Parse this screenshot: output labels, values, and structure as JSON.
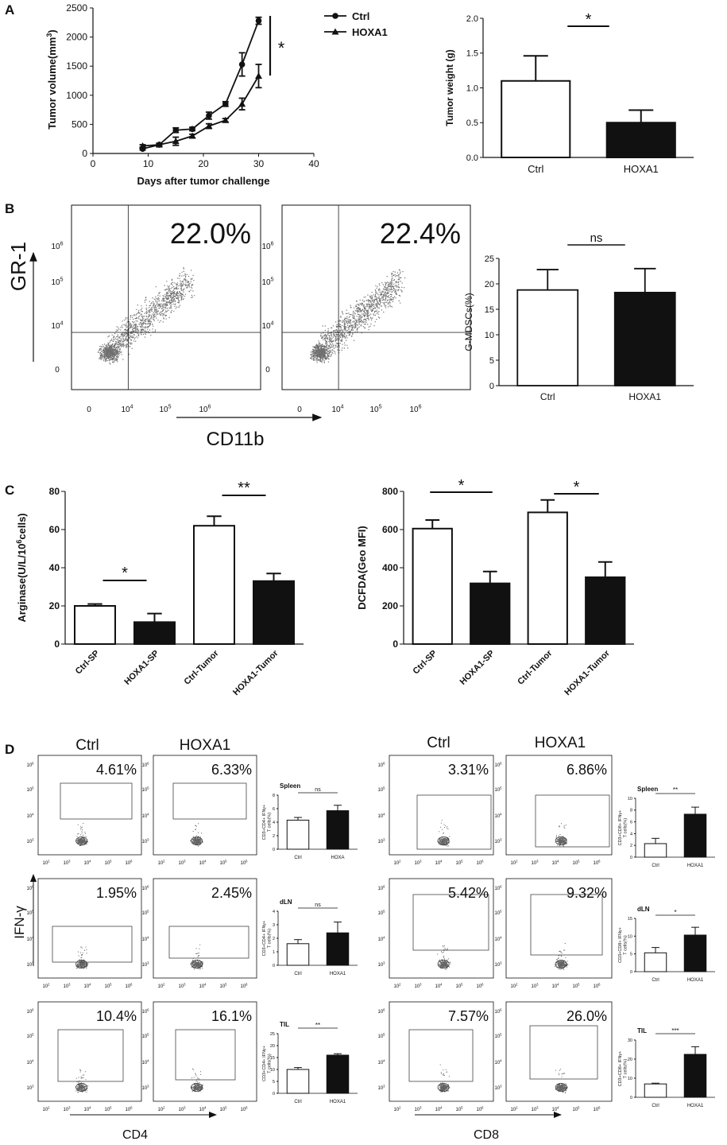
{
  "panels": {
    "A": "A",
    "B": "B",
    "C": "C",
    "D": "D"
  },
  "chart_data": [
    {
      "id": "A_growth",
      "type": "line",
      "xlabel": "Days after tumor challenge",
      "ylabel": "Tumor volume(mm3)",
      "xlim": [
        0,
        40
      ],
      "ylim": [
        0,
        2500
      ],
      "xticks": [
        0,
        10,
        20,
        30,
        40
      ],
      "yticks": [
        0,
        500,
        1000,
        1500,
        2000,
        2500
      ],
      "series": [
        {
          "name": "Ctrl",
          "marker": "circle",
          "x": [
            9,
            12,
            15,
            18,
            21,
            24,
            27,
            30
          ],
          "y": [
            80,
            150,
            400,
            420,
            650,
            850,
            1530,
            2280
          ],
          "err": [
            20,
            25,
            40,
            30,
            60,
            40,
            200,
            60
          ]
        },
        {
          "name": "HOXA1",
          "marker": "triangle",
          "x": [
            9,
            12,
            15,
            18,
            21,
            24,
            27,
            30
          ],
          "y": [
            130,
            150,
            210,
            300,
            470,
            570,
            850,
            1330
          ],
          "err": [
            20,
            20,
            70,
            30,
            40,
            30,
            100,
            200
          ]
        }
      ],
      "significance": "*"
    },
    {
      "id": "A_weight",
      "type": "bar",
      "ylabel": "Tumor weight (g)",
      "categories": [
        "Ctrl",
        "HOXA1"
      ],
      "values": [
        1.1,
        0.5
      ],
      "errors": [
        0.36,
        0.18
      ],
      "fills": [
        "#ffffff",
        "#111111"
      ],
      "ylim": [
        0,
        2.0
      ],
      "yticks": [
        "0.0",
        "0.5",
        "1.0",
        "1.5",
        "2.0"
      ],
      "significance": [
        "*"
      ]
    },
    {
      "id": "B_mdsc",
      "type": "bar",
      "ylabel": "G-MDSCs(%)",
      "categories": [
        "Ctrl",
        "HOXA1"
      ],
      "values": [
        18.8,
        18.3
      ],
      "errors": [
        4.0,
        4.7
      ],
      "fills": [
        "#ffffff",
        "#111111"
      ],
      "ylim": [
        0,
        25
      ],
      "yticks": [
        "0",
        "5",
        "10",
        "15",
        "20",
        "25"
      ],
      "significance": [
        "ns"
      ]
    },
    {
      "id": "C_arginase",
      "type": "bar",
      "ylabel": "Arginase(U/L/10^6cells)",
      "categories": [
        "Ctrl-SP",
        "HOXA1-SP",
        "Ctrl-Tumor",
        "HOXA1-Tumor"
      ],
      "values": [
        20,
        11.5,
        62,
        33
      ],
      "errors": [
        1,
        4.5,
        5,
        4
      ],
      "fills": [
        "#ffffff",
        "#111111",
        "#ffffff",
        "#111111"
      ],
      "ylim": [
        0,
        80
      ],
      "yticks": [
        "0",
        "20",
        "40",
        "60",
        "80"
      ],
      "significance": [
        "*",
        "**"
      ]
    },
    {
      "id": "C_dcfda",
      "type": "bar",
      "ylabel": "DCFDA(Geo MFI)",
      "categories": [
        "Ctrl-SP",
        "HOXA1-SP",
        "Ctrl-Tumor",
        "HOXA1-Tumor"
      ],
      "values": [
        605,
        318,
        690,
        350
      ],
      "errors": [
        45,
        62,
        65,
        80
      ],
      "fills": [
        "#ffffff",
        "#111111",
        "#ffffff",
        "#111111"
      ],
      "ylim": [
        0,
        800
      ],
      "yticks": [
        "0",
        "200",
        "400",
        "600",
        "800"
      ],
      "significance": [
        "*",
        "*"
      ]
    },
    {
      "id": "D_cd4_spleen",
      "type": "bar",
      "title": "Spleen",
      "ylabel": "CD3+CD4+ IFNγ+ T cells(%)",
      "categories": [
        "Ctrl",
        "HOXA"
      ],
      "values": [
        4.3,
        5.7
      ],
      "errors": [
        0.4,
        0.8
      ],
      "fills": [
        "#ffffff",
        "#111111"
      ],
      "ylim": [
        0,
        8
      ],
      "yticks": [
        "0",
        "2",
        "4",
        "6",
        "8"
      ],
      "significance": [
        "ns"
      ]
    },
    {
      "id": "D_cd4_dln",
      "type": "bar",
      "title": "dLN",
      "ylabel": "CD3+CD4+ IFNγ+ T cells(%)",
      "categories": [
        "Ctrl",
        "HOXA1"
      ],
      "values": [
        1.6,
        2.4
      ],
      "errors": [
        0.3,
        0.8
      ],
      "fills": [
        "#ffffff",
        "#111111"
      ],
      "ylim": [
        0,
        4
      ],
      "yticks": [
        "0",
        "1",
        "2",
        "3",
        "4"
      ],
      "significance": [
        "ns"
      ]
    },
    {
      "id": "D_cd4_til",
      "type": "bar",
      "title": "TIL",
      "ylabel": "CD3+CD4+ IFNγ+ T cells(%)",
      "categories": [
        "Ctrl",
        "HOXA1"
      ],
      "values": [
        10,
        16
      ],
      "errors": [
        0.8,
        0.6
      ],
      "fills": [
        "#ffffff",
        "#111111"
      ],
      "ylim": [
        0,
        25
      ],
      "yticks": [
        "0",
        "5",
        "10",
        "15",
        "20",
        "25"
      ],
      "significance": [
        "**"
      ]
    },
    {
      "id": "D_cd8_spleen",
      "type": "bar",
      "title": "Spleen",
      "ylabel": "CD3+CD8+ IFNγ+ T cells(%)",
      "categories": [
        "Ctrl",
        "HOXA1"
      ],
      "values": [
        2.3,
        7.3
      ],
      "errors": [
        0.9,
        1.2
      ],
      "fills": [
        "#ffffff",
        "#111111"
      ],
      "ylim": [
        0,
        10
      ],
      "yticks": [
        "0",
        "2",
        "4",
        "6",
        "8",
        "10"
      ],
      "significance": [
        "**"
      ]
    },
    {
      "id": "D_cd8_dln",
      "type": "bar",
      "title": "dLN",
      "ylabel": "CD3+CD8+ IFNγ+ T cells(%)",
      "categories": [
        "Ctrl",
        "HOXA1"
      ],
      "values": [
        5.3,
        10.3
      ],
      "errors": [
        1.5,
        2.2
      ],
      "fills": [
        "#ffffff",
        "#111111"
      ],
      "ylim": [
        0,
        15
      ],
      "yticks": [
        "0",
        "5",
        "10",
        "15"
      ],
      "significance": [
        "*"
      ]
    },
    {
      "id": "D_cd8_til",
      "type": "bar",
      "title": "TIL",
      "ylabel": "CD3+CD8+ IFNγ+ T cells(%)",
      "categories": [
        "Ctrl",
        "HOXA1"
      ],
      "values": [
        7,
        22.5
      ],
      "errors": [
        0.4,
        4
      ],
      "fills": [
        "#ffffff",
        "#111111"
      ],
      "ylim": [
        0,
        30
      ],
      "yticks": [
        "0",
        "10",
        "20",
        "30"
      ],
      "significance": [
        "***"
      ]
    }
  ],
  "flow": {
    "B": {
      "xlabel": "CD11b",
      "ylabel": "GR-1",
      "plots": [
        {
          "pct": "22.0%"
        },
        {
          "pct": "22.4%"
        }
      ],
      "yticks": [
        "10^6",
        "10^5",
        "10^4",
        "0"
      ],
      "xticks": [
        "0",
        "10^4",
        "10^5",
        "10^6"
      ]
    },
    "D": {
      "ylabel": "IFN-γ",
      "cd4_label": "CD4",
      "cd8_label": "CD8",
      "col_headers": [
        "Ctrl",
        "HOXA1",
        "Ctrl",
        "HOXA1"
      ],
      "grid": [
        [
          "4.61%",
          "6.33%",
          "3.31%",
          "6.86%"
        ],
        [
          "1.95%",
          "2.45%",
          "5.42%",
          "9.32%"
        ],
        [
          "10.4%",
          "16.1%",
          "7.57%",
          "26.0%"
        ]
      ],
      "yticks": [
        "10^6",
        "10^5",
        "10^4",
        "10^3"
      ],
      "xticks": [
        "10^2",
        "10^3",
        "10^4",
        "10^5",
        "10^6"
      ]
    }
  }
}
